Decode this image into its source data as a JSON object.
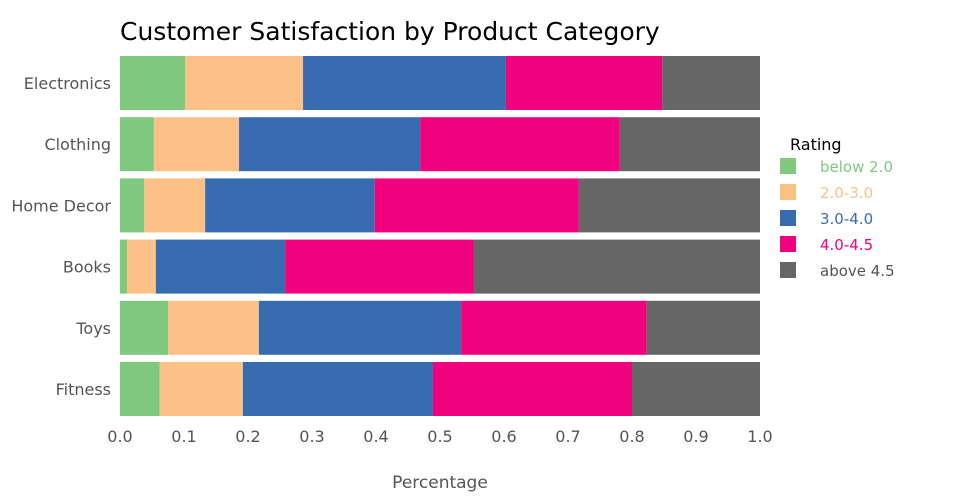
{
  "chart_data": {
    "type": "bar",
    "orientation": "horizontal",
    "stacked": true,
    "title": "Customer Satisfaction by Product Category",
    "xlabel": "Percentage",
    "ylabel": "",
    "xlim": [
      0,
      1
    ],
    "xticks": [
      "0.0",
      "0.1",
      "0.2",
      "0.3",
      "0.4",
      "0.5",
      "0.6",
      "0.7",
      "0.8",
      "0.9",
      "1.0"
    ],
    "categories": [
      "Electronics",
      "Clothing",
      "Home Decor",
      "Books",
      "Toys",
      "Fitness"
    ],
    "legend": {
      "title": "Rating",
      "placement": "right"
    },
    "series": [
      {
        "name": "below 2.0",
        "color": "#7fc97f",
        "values": [
          0.102,
          0.053,
          0.038,
          0.011,
          0.075,
          0.062
        ]
      },
      {
        "name": "2.0-3.0",
        "color": "#fdc086",
        "values": [
          0.184,
          0.133,
          0.095,
          0.045,
          0.142,
          0.13
        ]
      },
      {
        "name": "3.0-4.0",
        "color": "#386cb0",
        "values": [
          0.317,
          0.283,
          0.265,
          0.202,
          0.316,
          0.297
        ]
      },
      {
        "name": "4.0-4.5",
        "color": "#f0027f",
        "values": [
          0.244,
          0.312,
          0.319,
          0.295,
          0.29,
          0.311
        ]
      },
      {
        "name": "above 4.5",
        "color": "#666666",
        "values": [
          0.153,
          0.219,
          0.283,
          0.447,
          0.177,
          0.2
        ]
      }
    ]
  }
}
